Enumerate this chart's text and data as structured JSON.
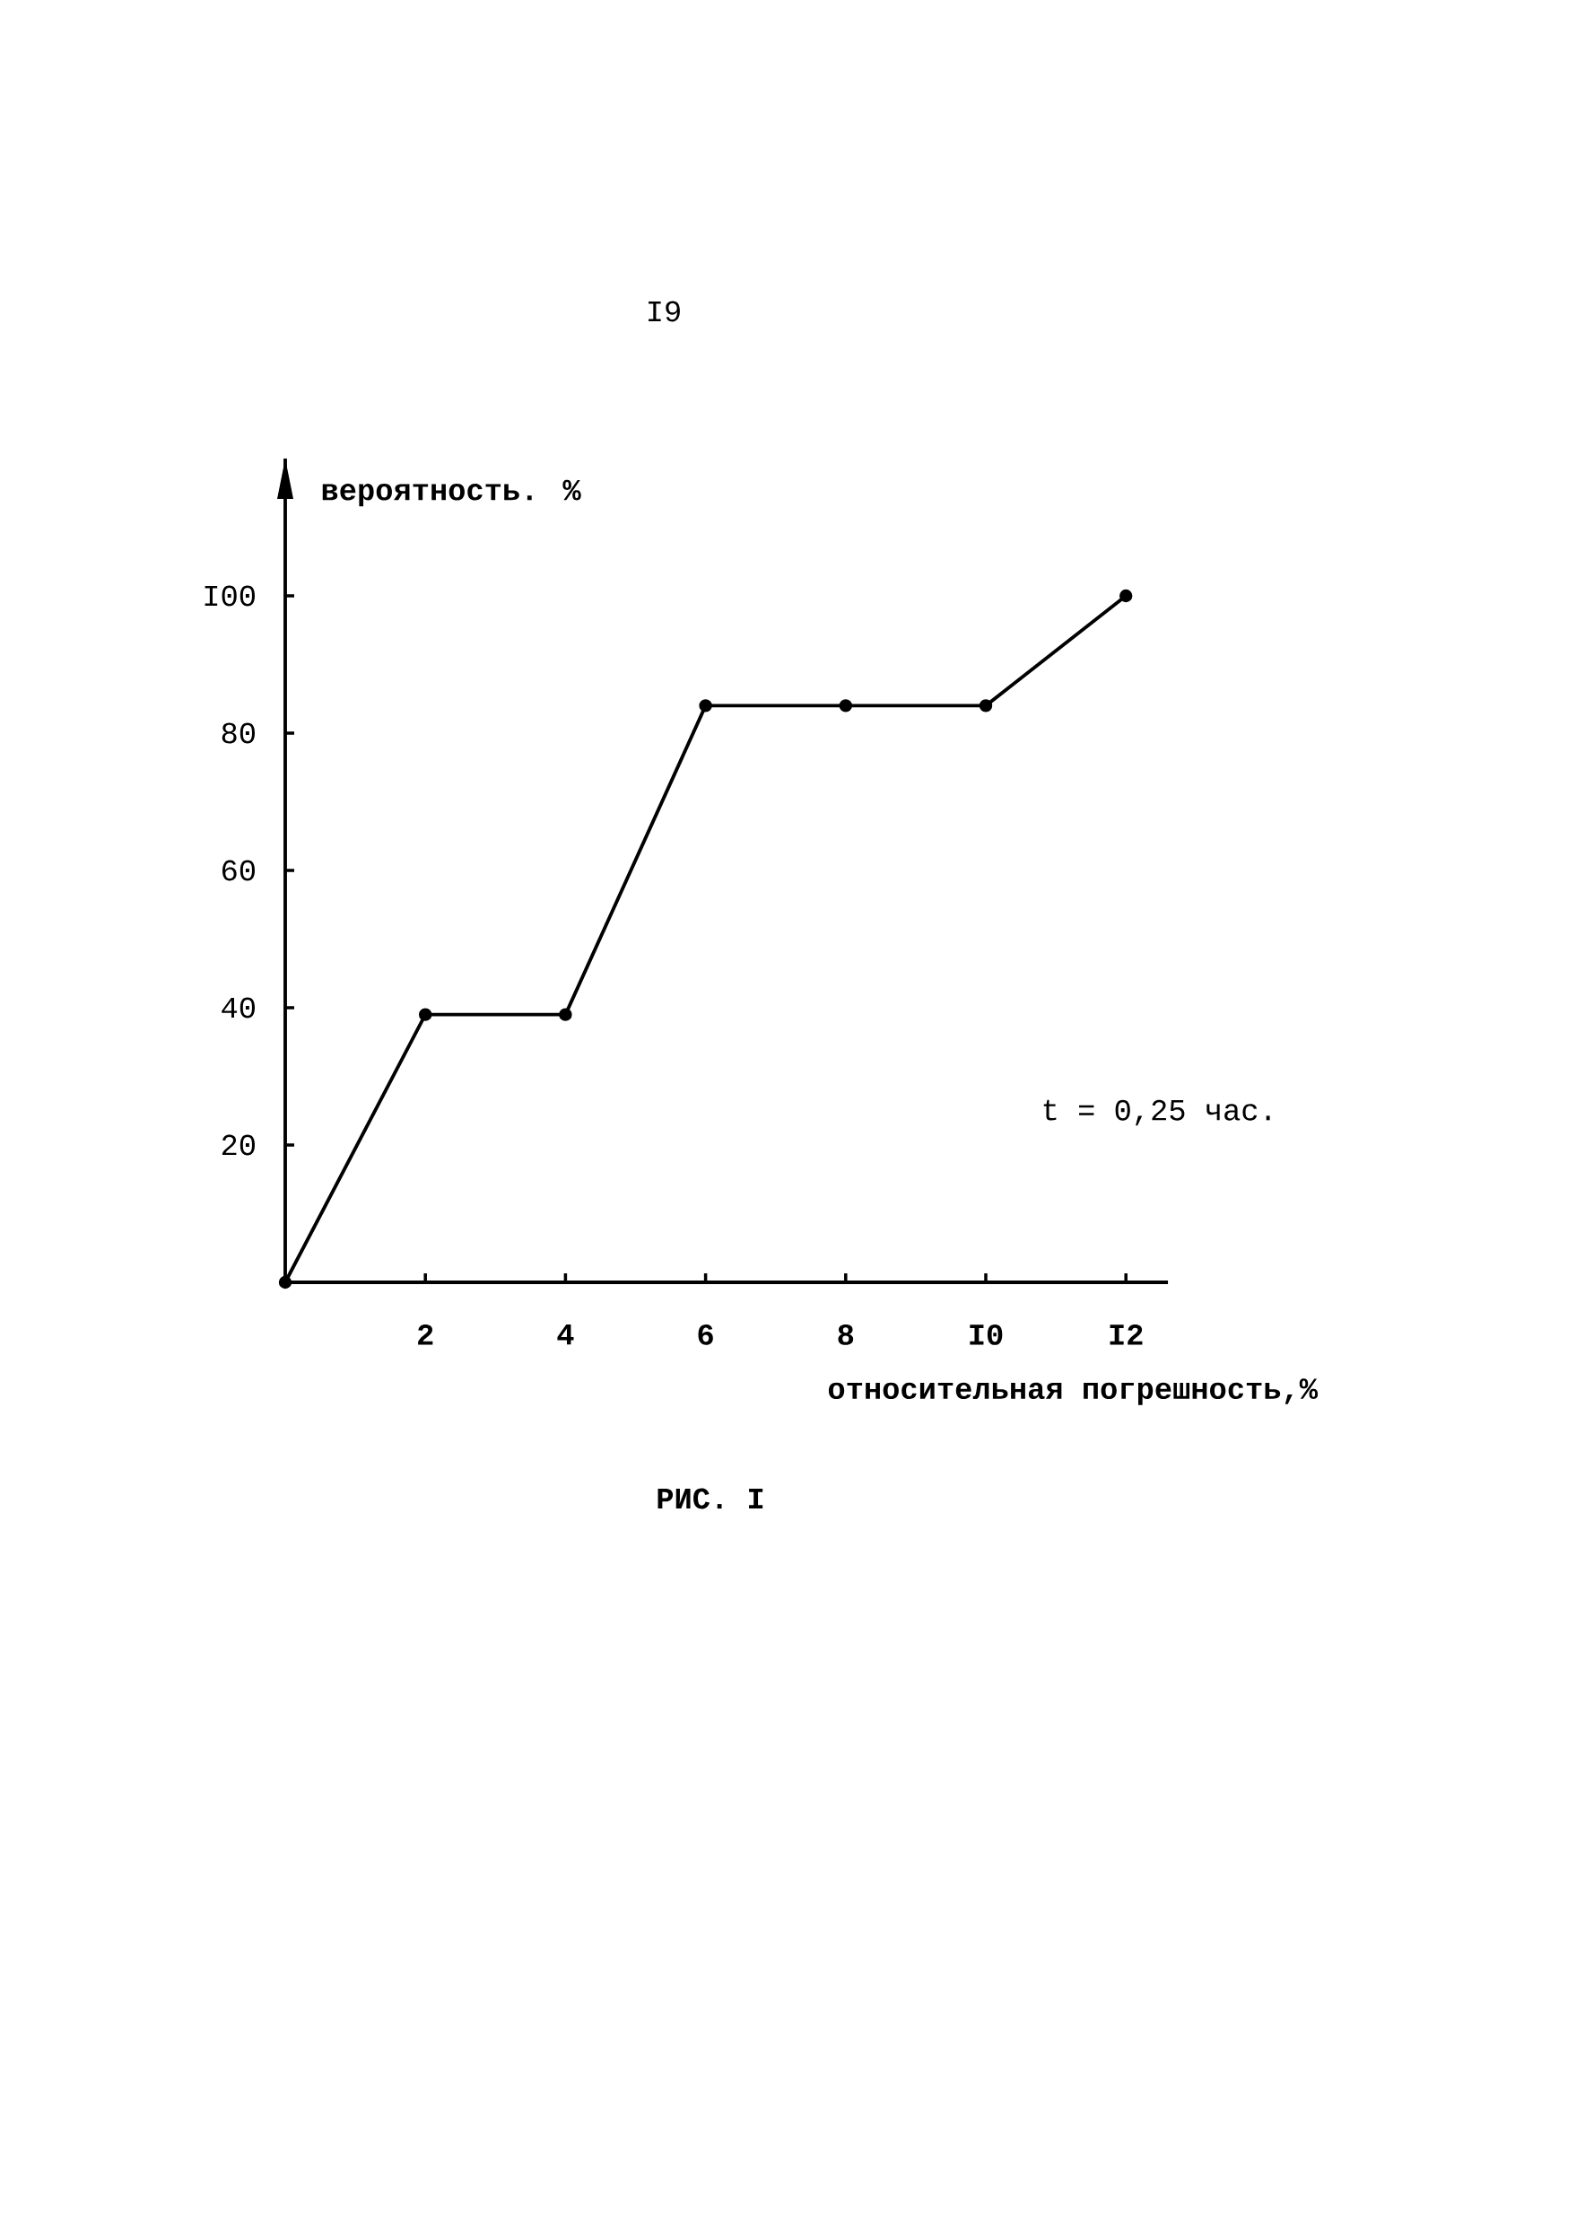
{
  "chart_data": {
    "type": "line",
    "x": [
      0,
      2,
      4,
      6,
      8,
      10,
      12
    ],
    "values": [
      0,
      39,
      39,
      84,
      84,
      84,
      100
    ],
    "color": "#000000",
    "xlim": [
      0,
      12.6
    ],
    "ylim": [
      0,
      120
    ],
    "xticks": [
      2,
      4,
      6,
      8,
      {
        "value": 10,
        "label": "I0"
      },
      {
        "value": 12,
        "label": "I2"
      }
    ],
    "yticks": [
      20,
      40,
      60,
      80,
      {
        "value": 100,
        "label": "I00"
      }
    ],
    "xlabel": "относительная погрешность,%",
    "ylabel": "вероятность. %",
    "annotations": [
      "t = 0,25 час.",
      "I9",
      "РИС. I"
    ],
    "marker": "circle",
    "line_style": "solid"
  }
}
